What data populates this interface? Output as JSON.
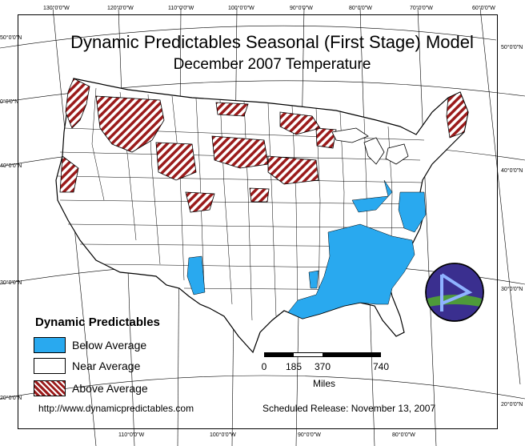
{
  "map": {
    "title": "Dynamic Predictables Seasonal (First Stage) Model",
    "subtitle": "December 2007 Temperature",
    "legend": {
      "title": "Dynamic Predictables",
      "items": [
        {
          "label": "Below Average",
          "color": "#29a9ef"
        },
        {
          "label": "Near Average",
          "color": "#ffffff"
        },
        {
          "label": "Above Average",
          "color": "#9b1b1b"
        }
      ]
    },
    "scalebar": {
      "ticks": [
        "0",
        "185",
        "370",
        "740"
      ],
      "units": "Miles"
    },
    "footer": {
      "url": "http://www.dynamicpredictables.com",
      "release": "Scheduled Release: November 13, 2007"
    },
    "coords_top": [
      "130°0'0\"W",
      "120°0'0\"W",
      "110°0'0\"W",
      "100°0'0\"W",
      "90°0'0\"W",
      "80°0'0\"W",
      "70°0'0\"W",
      "60°0'0\"W"
    ],
    "coords_bottom": [
      "110°0'0\"W",
      "100°0'0\"W",
      "90°0'0\"W",
      "80°0'0\"W"
    ],
    "coords_left": [
      "50°0'0\"N",
      "40°0'0\"N",
      "30°0'0\"N",
      "20°0'0\"N",
      "0°0'0\"N"
    ],
    "coords_right": [
      "50°0'0\"N",
      "40°0'0\"N",
      "30°0'0\"N",
      "20°0'0\"N"
    ],
    "colors": {
      "below": "#29a9ef",
      "above": "#9b1b1b",
      "border": "#000000"
    }
  }
}
